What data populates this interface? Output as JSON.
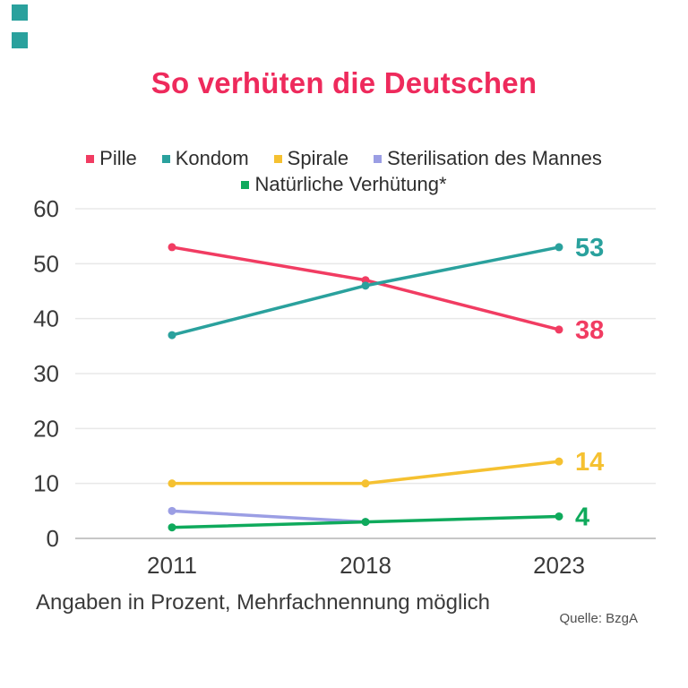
{
  "branding": {
    "corner_color": "#2aa19d"
  },
  "title": {
    "text": "So verhüten die Deutschen",
    "color": "#ee2a5c"
  },
  "chart_data": {
    "type": "line",
    "categories": [
      "2011",
      "2018",
      "2023"
    ],
    "series": [
      {
        "name": "Pille",
        "color": "#f13c62",
        "values": [
          53,
          47,
          38
        ],
        "end_label": "38"
      },
      {
        "name": "Kondom",
        "color": "#2aa19d",
        "values": [
          37,
          46,
          53
        ],
        "end_label": "53"
      },
      {
        "name": "Spirale",
        "color": "#f5c131",
        "values": [
          10,
          10,
          14
        ],
        "end_label": "14"
      },
      {
        "name": "Sterilisation des Mannes",
        "color": "#9b9ee4",
        "values": [
          5,
          3,
          null
        ],
        "end_label": ""
      },
      {
        "name": "Natürliche Verhütung*",
        "color": "#0faa5c",
        "values": [
          2,
          3,
          4
        ],
        "end_label": "4"
      }
    ],
    "ylim": [
      0,
      60
    ],
    "y_ticks": [
      0,
      10,
      20,
      30,
      40,
      50,
      60
    ],
    "grid": "horizontal",
    "legend_position": "top",
    "axis_text_color": "#3a3a3a",
    "gridline_color": "#e8e8e8",
    "baseline_color": "#c7c7c7"
  },
  "footer": {
    "note": "Angaben in Prozent, Mehrfachnennung möglich",
    "source": "Quelle: BzgA"
  }
}
